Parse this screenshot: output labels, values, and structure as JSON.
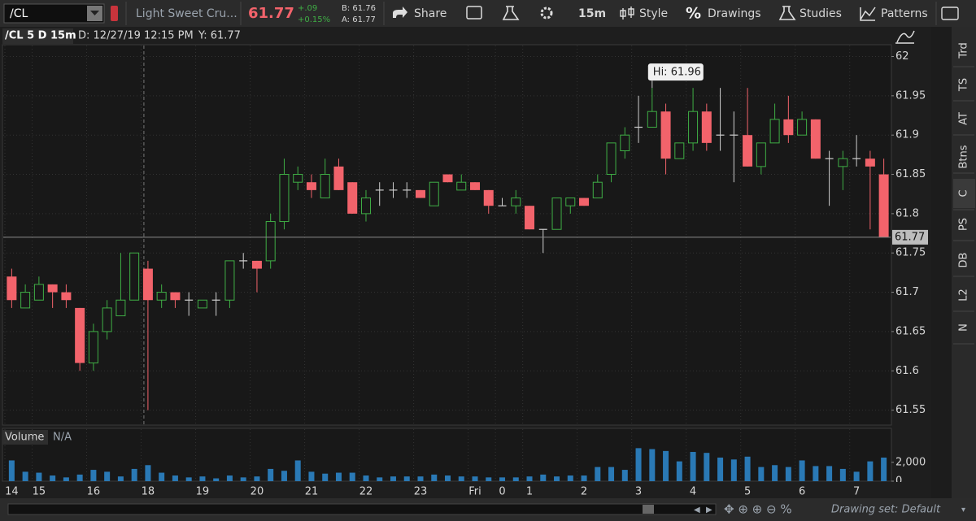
{
  "toolbar": {
    "symbol": "/CL",
    "description": "Light Sweet Cru...",
    "last": "61.77",
    "change": "+.09",
    "change_pct": "+0.15%",
    "bid": "B: 61.76",
    "ask": "A: 61.77",
    "buttons": [
      "Share",
      "15m",
      "Style",
      "Drawings",
      "Studies",
      "Patterns"
    ]
  },
  "chart_data": {
    "type": "candlestick",
    "title": "/CL 5 D 15m",
    "date": "D: 12/27/19 12:15 PM",
    "cursor": "Y: 61.77",
    "categories": [
      "14",
      null,
      "15",
      null,
      null,
      null,
      "16",
      null,
      null,
      null,
      "18",
      null,
      null,
      null,
      "19",
      null,
      null,
      null,
      "20",
      null,
      null,
      null,
      "21",
      null,
      null,
      null,
      "22",
      null,
      null,
      null,
      "23",
      null,
      null,
      null,
      "Fri",
      null,
      "0",
      null,
      "1",
      null,
      null,
      null,
      "2",
      null,
      null,
      null,
      "3",
      null,
      null,
      null,
      "4",
      null,
      null,
      null,
      "5",
      null,
      null,
      null,
      "6",
      null,
      null,
      null,
      "7",
      null,
      null
    ],
    "open": [
      61.72,
      61.68,
      61.69,
      61.71,
      61.7,
      61.68,
      61.61,
      61.65,
      61.67,
      61.69,
      61.73,
      61.69,
      61.7,
      61.69,
      61.68,
      61.69,
      61.69,
      61.74,
      61.74,
      61.74,
      61.79,
      61.84,
      61.84,
      61.82,
      61.86,
      61.84,
      61.8,
      61.83,
      61.83,
      61.83,
      61.83,
      61.81,
      61.85,
      61.83,
      61.84,
      61.83,
      61.81,
      61.81,
      61.81,
      61.78,
      61.78,
      61.81,
      61.82,
      61.82,
      61.85,
      61.88,
      61.91,
      61.91,
      61.93,
      61.87,
      61.89,
      61.93,
      61.9,
      61.9,
      61.9,
      61.86,
      61.89,
      61.92,
      61.9,
      61.92,
      61.87,
      61.86,
      61.87,
      61.87,
      61.85
    ],
    "high": [
      61.73,
      61.71,
      61.72,
      61.71,
      61.71,
      61.68,
      61.66,
      61.69,
      61.75,
      61.75,
      61.74,
      61.71,
      61.7,
      61.7,
      61.69,
      61.7,
      61.74,
      61.75,
      61.74,
      61.8,
      61.87,
      61.86,
      61.85,
      61.87,
      61.87,
      61.84,
      61.83,
      61.84,
      61.84,
      61.84,
      61.83,
      61.84,
      61.85,
      61.85,
      61.84,
      61.83,
      61.82,
      61.83,
      61.81,
      61.78,
      61.82,
      61.82,
      61.82,
      61.85,
      61.89,
      61.91,
      61.95,
      61.96,
      61.94,
      61.89,
      61.96,
      61.94,
      61.96,
      61.93,
      61.96,
      61.89,
      61.94,
      61.95,
      61.93,
      61.92,
      61.88,
      61.88,
      61.9,
      61.88,
      61.87
    ],
    "low": [
      61.68,
      61.68,
      61.69,
      61.68,
      61.68,
      61.6,
      61.6,
      61.64,
      61.67,
      61.69,
      61.55,
      61.68,
      61.68,
      61.67,
      61.68,
      61.67,
      61.68,
      61.73,
      61.7,
      61.73,
      61.78,
      61.83,
      61.82,
      61.82,
      61.83,
      61.8,
      61.79,
      61.81,
      61.82,
      61.82,
      61.82,
      61.81,
      61.84,
      61.83,
      61.83,
      61.8,
      61.81,
      61.8,
      61.78,
      61.75,
      61.78,
      61.8,
      61.81,
      61.82,
      61.84,
      61.87,
      61.89,
      61.91,
      61.85,
      61.87,
      61.88,
      61.88,
      61.88,
      61.84,
      61.86,
      61.85,
      61.89,
      61.89,
      61.9,
      61.87,
      61.81,
      61.83,
      61.86,
      61.78,
      61.77
    ],
    "close": [
      61.69,
      61.7,
      61.71,
      61.7,
      61.69,
      61.61,
      61.65,
      61.68,
      61.69,
      61.75,
      61.69,
      61.7,
      61.69,
      61.69,
      61.69,
      61.69,
      61.74,
      61.74,
      61.73,
      61.79,
      61.85,
      61.85,
      61.83,
      61.85,
      61.83,
      61.8,
      61.82,
      61.83,
      61.83,
      61.83,
      61.82,
      61.84,
      61.84,
      61.84,
      61.83,
      61.81,
      61.81,
      61.82,
      61.78,
      61.78,
      61.82,
      61.82,
      61.81,
      61.84,
      61.89,
      61.9,
      61.91,
      61.93,
      61.87,
      61.89,
      61.93,
      61.89,
      61.9,
      61.9,
      61.86,
      61.89,
      61.92,
      61.9,
      61.92,
      61.87,
      61.87,
      61.87,
      61.87,
      61.86,
      61.77
    ],
    "up_color": "#3fae45",
    "down_color": "#f2636b",
    "flat_color": "#cfcfcf",
    "ylim": [
      61.532,
      62.015
    ],
    "yticks": [
      61.55,
      61.6,
      61.65,
      61.7,
      61.75,
      61.8,
      61.85,
      61.9,
      61.95,
      62
    ],
    "grid": true,
    "last_price": 61.77,
    "high_label": "Hi: 61.96",
    "high_value": 61.96,
    "volume": {
      "title": "Volume",
      "status": "N/A",
      "color": "#2a79b5",
      "ylim": [
        0,
        5600
      ],
      "yticks": [
        0,
        {
          "value": 2000,
          "label": "2,000"
        }
      ],
      "values": [
        2200,
        1000,
        900,
        600,
        400,
        700,
        1200,
        1000,
        500,
        1300,
        1700,
        900,
        600,
        400,
        500,
        300,
        600,
        400,
        500,
        1300,
        1100,
        2200,
        1000,
        800,
        900,
        900,
        600,
        400,
        500,
        500,
        500,
        700,
        600,
        500,
        500,
        400,
        400,
        400,
        500,
        700,
        500,
        600,
        600,
        1500,
        1500,
        1200,
        3500,
        3400,
        3200,
        2100,
        3100,
        3000,
        2500,
        2300,
        2600,
        1500,
        1700,
        1500,
        2200,
        1600,
        1600,
        1300,
        1000,
        2100,
        2500
      ]
    }
  },
  "sidebar": [
    "Trd",
    "TS",
    "AT",
    "Btns",
    "C",
    "PS",
    "DB",
    "L2",
    "N"
  ],
  "footer": {
    "drawing_set": "Drawing set: Default"
  }
}
